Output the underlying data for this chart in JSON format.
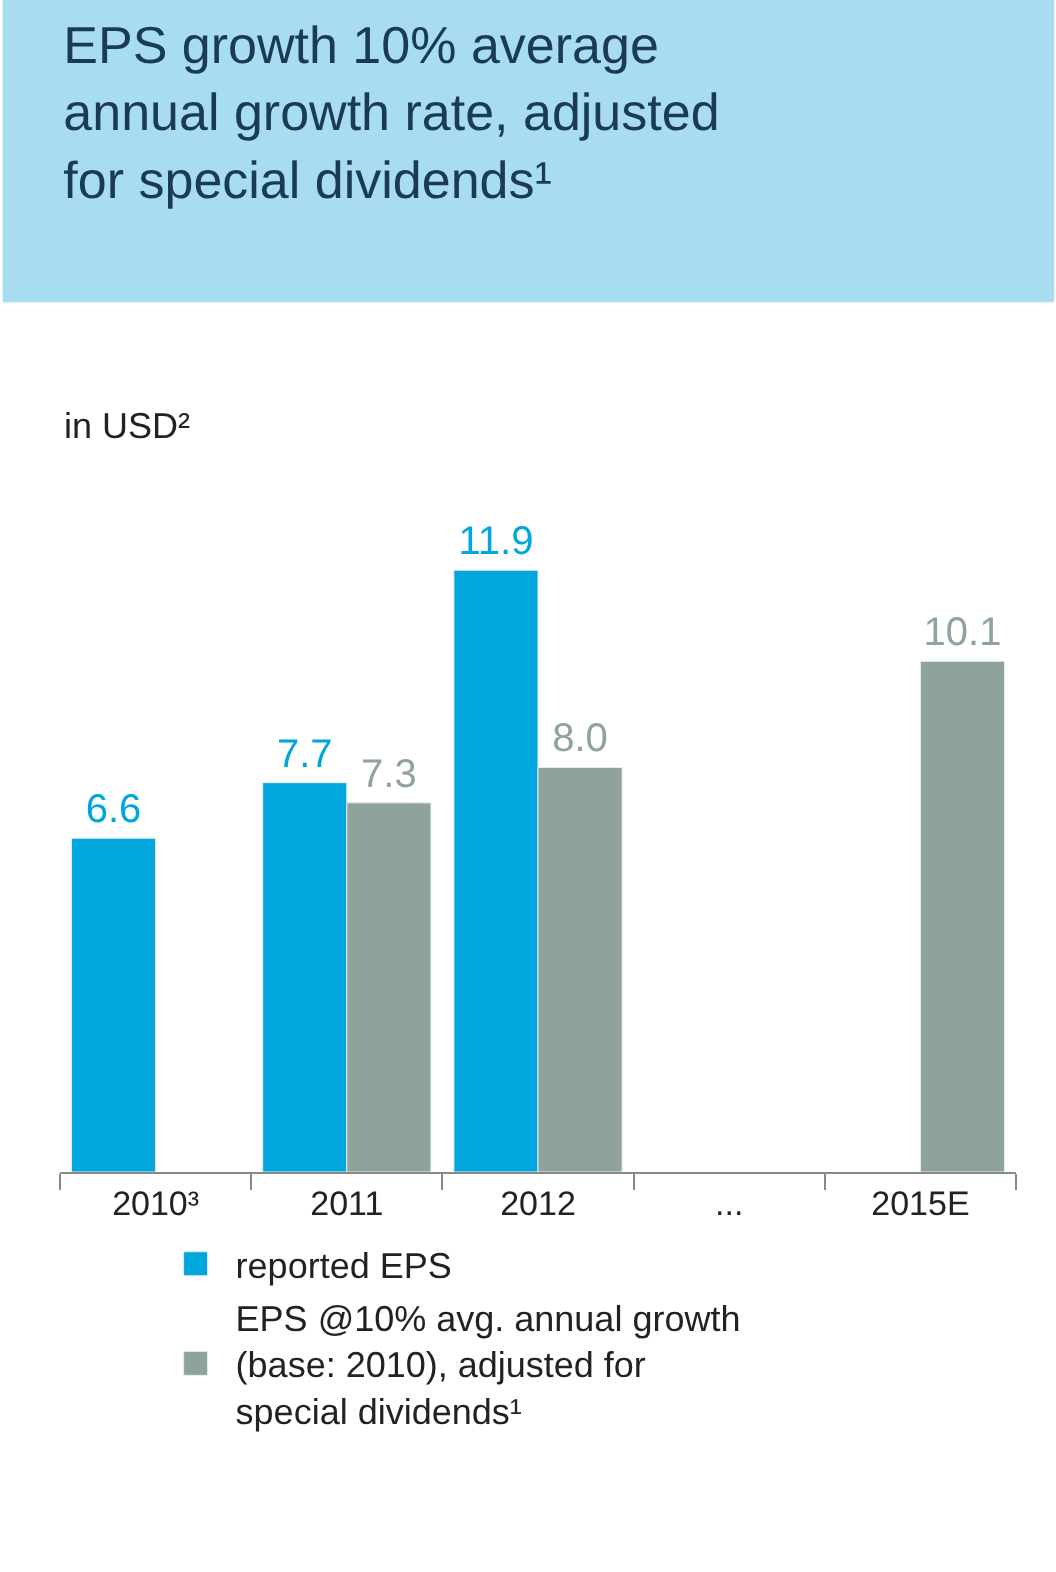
{
  "chart_data": {
    "type": "bar",
    "title": "EPS growth 10% average annual growth rate, adjusted for special dividends¹",
    "subtitle": "in USD²",
    "categories": [
      "2010³",
      "2011",
      "2012",
      "...",
      "2015E"
    ],
    "series": [
      {
        "name": "reported EPS",
        "color": "#00a6dc",
        "values": [
          6.6,
          7.7,
          11.9,
          null,
          null
        ],
        "value_labels": [
          "6.6",
          "7.7",
          "11.9",
          null,
          null
        ]
      },
      {
        "name": "EPS @10% avg. annual growth (base: 2010), adjusted for special dividends¹",
        "color": "#8fa39b",
        "values": [
          null,
          7.3,
          8.0,
          null,
          10.1
        ],
        "value_labels": [
          null,
          "7.3",
          "8.0",
          null,
          "10.1"
        ]
      }
    ],
    "legend": "bottom"
  }
}
